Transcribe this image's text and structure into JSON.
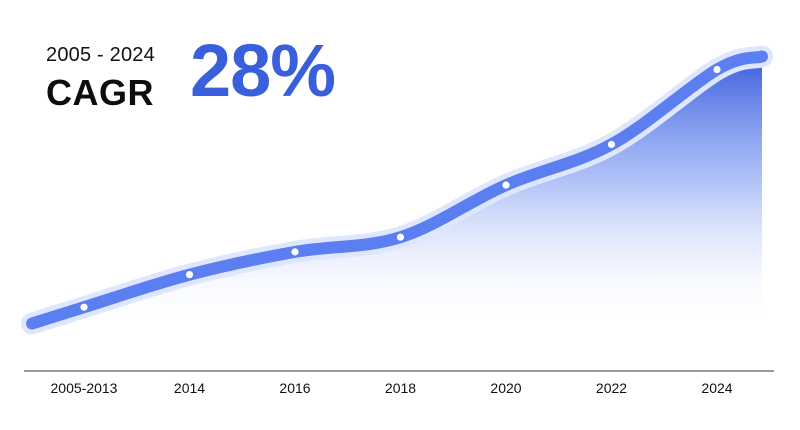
{
  "header": {
    "period": "2005 - 2024",
    "metric_label": "CAGR",
    "metric_value": "28%"
  },
  "colors": {
    "accent": "#3a5fdc",
    "line": "#5b7ef0",
    "axis": "#333333"
  },
  "chart_data": {
    "type": "area",
    "categories": [
      "2005-2013",
      "2014",
      "2016",
      "2018",
      "2020",
      "2022",
      "2024"
    ],
    "values": [
      0,
      20,
      34,
      43,
      75,
      100,
      146
    ],
    "ylim": [
      -14,
      158
    ],
    "title": "",
    "xlabel": "",
    "ylabel": "",
    "grid": false,
    "legend": "none"
  }
}
